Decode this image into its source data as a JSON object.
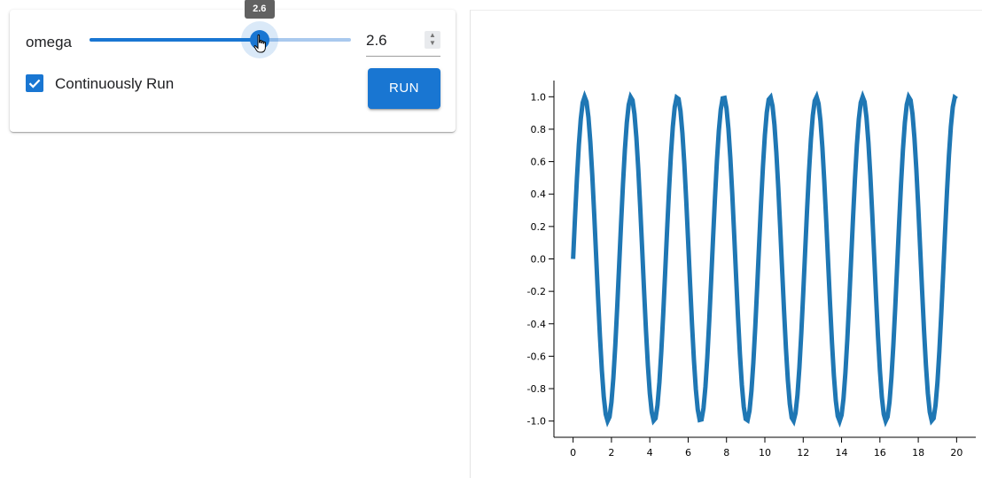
{
  "controls": {
    "omega_label": "omega",
    "omega_value": 2.6,
    "omega_min": 0,
    "omega_max": 4,
    "omega_display": "2.6",
    "tooltip": "2.6",
    "continuous_checked": true,
    "continuous_label": "Continuously Run",
    "run_label": "RUN"
  },
  "colors": {
    "accent": "#1976d2",
    "line": "#1f77b4"
  },
  "icons": {
    "spinner_up": "▲",
    "spinner_down": "▼",
    "check": "check-icon",
    "cursor": "hand-cursor-icon"
  },
  "chart_data": {
    "type": "line",
    "function": "sin(omega * x)",
    "omega": 2.6,
    "x_range": [
      0,
      20
    ],
    "xlim": [
      -1,
      21
    ],
    "ylim": [
      -1.1,
      1.1
    ],
    "x_ticks": [
      "0",
      "2",
      "4",
      "6",
      "8",
      "10",
      "12",
      "14",
      "16",
      "18",
      "20"
    ],
    "y_ticks": [
      "1.0",
      "0.8",
      "0.6",
      "0.4",
      "0.2",
      "0.0",
      "-0.2",
      "-0.4",
      "-0.6",
      "-0.8",
      "-1.0"
    ],
    "y_tick_values": [
      1.0,
      0.8,
      0.6,
      0.4,
      0.2,
      0.0,
      -0.2,
      -0.4,
      -0.6,
      -0.8,
      -1.0
    ],
    "x_tick_values": [
      0,
      2,
      4,
      6,
      8,
      10,
      12,
      14,
      16,
      18,
      20
    ]
  }
}
